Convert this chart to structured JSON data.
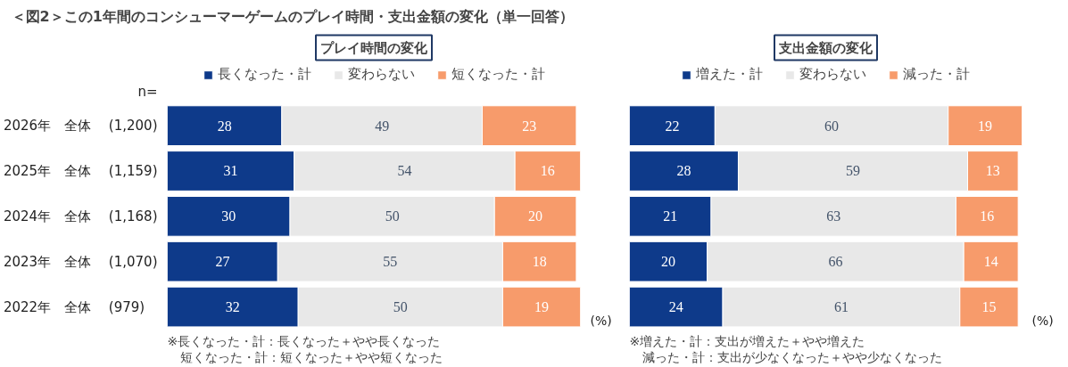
{
  "chart_data": [
    {
      "type": "bar",
      "orientation": "horizontal",
      "stacked": true,
      "title": "プレイ時間の変化",
      "categories": [
        "2026年　全体　 (1,200)",
        "2025年　全体　 (1,159)",
        "2024年　全体　 (1,168)",
        "2023年　全体　 (1,070)",
        "2022年　全体　    (979)"
      ],
      "series": [
        {
          "name": "長くなった・計",
          "color": "#0e3a8a",
          "values": [
            28,
            31,
            30,
            27,
            32
          ]
        },
        {
          "name": "変わらない",
          "color": "#e8e8e8",
          "values": [
            49,
            54,
            50,
            55,
            50
          ]
        },
        {
          "name": "短くなった・計",
          "color": "#f79b6b",
          "values": [
            23,
            16,
            20,
            18,
            19
          ]
        }
      ],
      "xlim": [
        0,
        101
      ],
      "tick_labels": "y",
      "data_labels": true,
      "legend": "top",
      "annotations": [
        "＜図2＞この1年間のコンシューマーゲームのプレイ時間・支出金額の変化（単一回答）",
        "n=",
        "(%)",
        "※長くなった・計：長くなった＋やや長くなった",
        "　短くなった・計：短くなった＋やや短くなった"
      ]
    },
    {
      "type": "bar",
      "orientation": "horizontal",
      "stacked": true,
      "title": "支出金額の変化",
      "categories": [
        null,
        null,
        null,
        null,
        null
      ],
      "series": [
        {
          "name": "増えた・計",
          "color": "#0e3a8a",
          "values": [
            22,
            28,
            21,
            20,
            24
          ]
        },
        {
          "name": "変わらない",
          "color": "#e8e8e8",
          "values": [
            60,
            59,
            63,
            66,
            61
          ]
        },
        {
          "name": "減った・計",
          "color": "#f79b6b",
          "values": [
            19,
            13,
            16,
            14,
            15
          ]
        }
      ],
      "xlim": [
        0,
        101
      ],
      "tick_labels": false,
      "data_labels": true,
      "legend": "top",
      "annotations": [
        "(%)",
        "※増えた・計：支出が増えた＋やや増えた",
        "　減った・計：支出が少なくなった＋やや少なくなった"
      ]
    }
  ]
}
